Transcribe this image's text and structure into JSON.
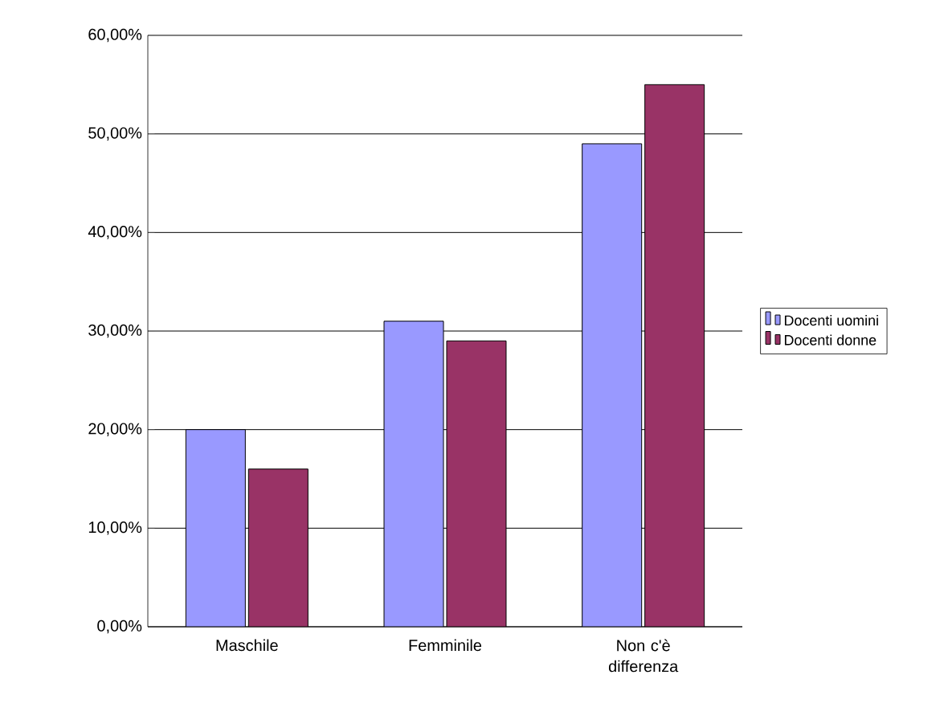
{
  "chart_data": {
    "type": "bar",
    "categories": [
      "Maschile",
      "Femminile",
      "Non c'è differenza"
    ],
    "series": [
      {
        "name": "Docenti uomini",
        "color": "#9999ff",
        "values": [
          20,
          31,
          49
        ]
      },
      {
        "name": "Docenti donne",
        "color": "#993366",
        "values": [
          16,
          29,
          55
        ]
      }
    ],
    "ylim": [
      0,
      60
    ],
    "yticks": [
      {
        "value": 0,
        "label": "0,00%"
      },
      {
        "value": 10,
        "label": "10,00%"
      },
      {
        "value": 20,
        "label": "20,00%"
      },
      {
        "value": 30,
        "label": "30,00%"
      },
      {
        "value": 40,
        "label": "40,00%"
      },
      {
        "value": 50,
        "label": "50,00%"
      },
      {
        "value": 60,
        "label": "60,00%"
      }
    ],
    "grid": "y",
    "legend": "right"
  }
}
